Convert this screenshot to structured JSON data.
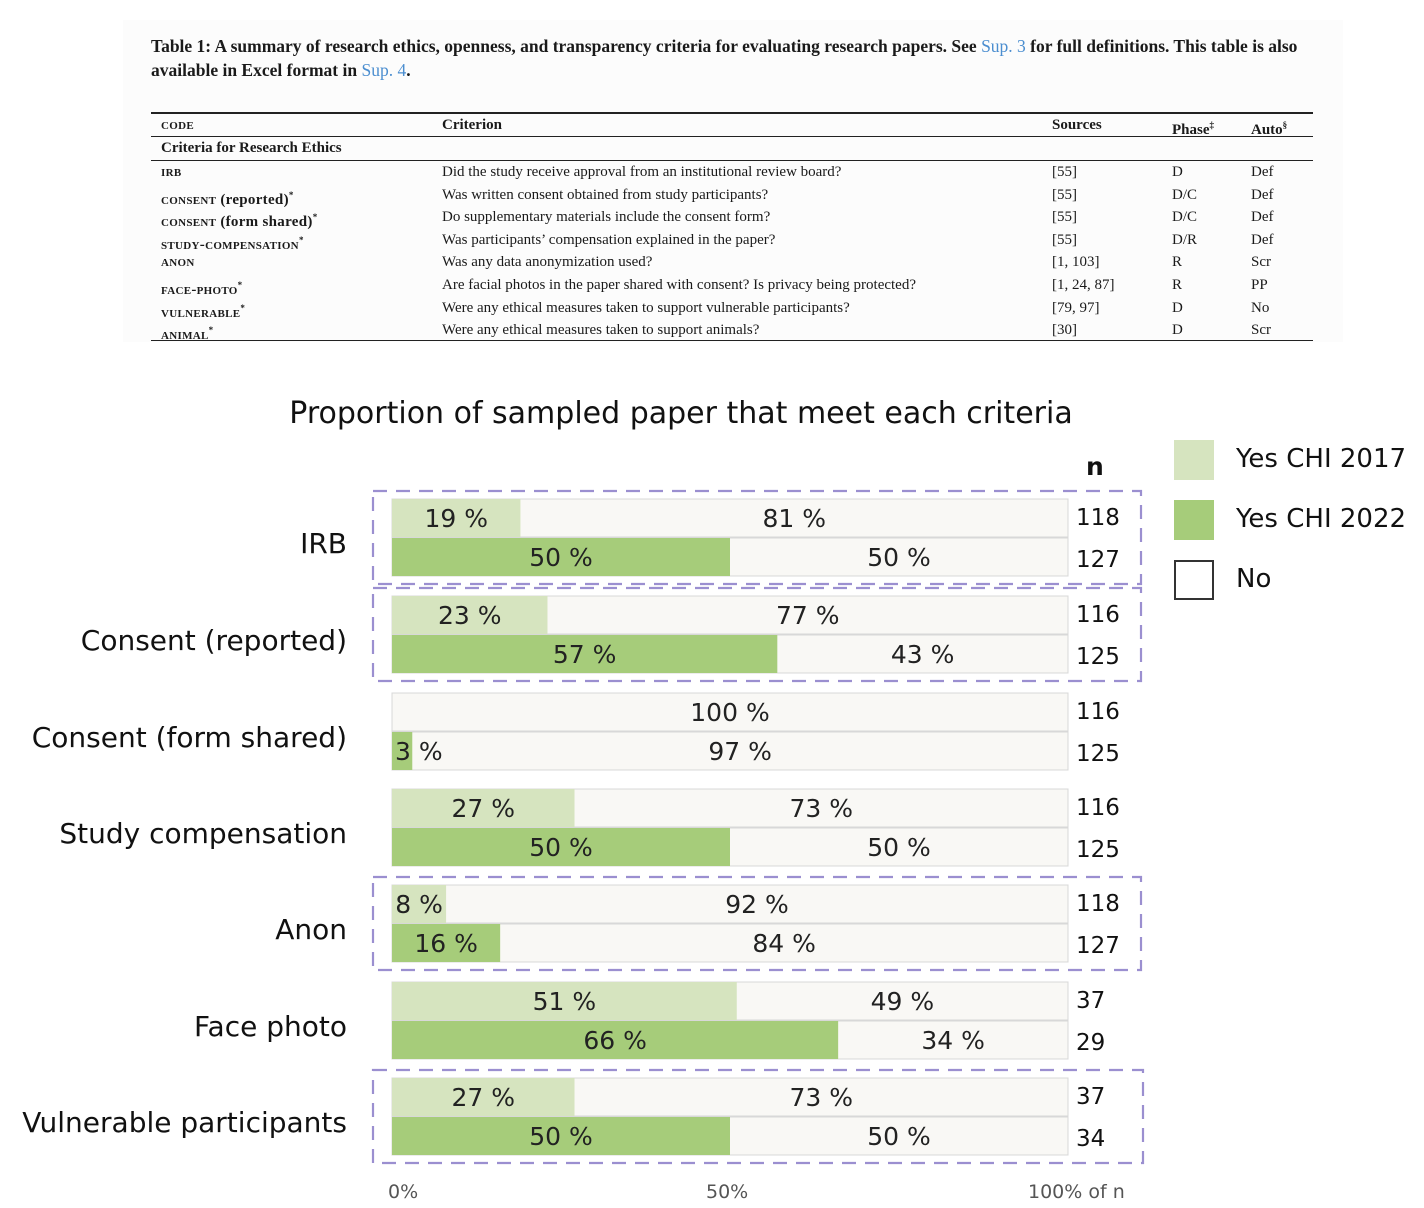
{
  "table": {
    "caption_parts": [
      "Table 1: A summary of research ethics, openness, and transparency criteria for evaluating research papers. See ",
      "Sup. 3",
      " for full definitions. This table is also available in Excel format in ",
      "Sup. 4",
      "."
    ],
    "headers": {
      "code": "code",
      "criterion": "Criterion",
      "sources": "Sources",
      "phase": "Phase",
      "phase_mark": "‡",
      "auto": "Auto",
      "auto_mark": "§"
    },
    "section": "Criteria for Research Ethics",
    "rows": [
      {
        "code": "irb",
        "suffix": "",
        "mark": "",
        "criterion": "Did the study receive approval from an institutional review board?",
        "sources": "[55]",
        "phase": "D",
        "auto": "Def"
      },
      {
        "code": "consent",
        "suffix": "(reported)",
        "mark": "*",
        "criterion": "Was written consent obtained from study participants?",
        "sources": "[55]",
        "phase": "D/C",
        "auto": "Def"
      },
      {
        "code": "consent",
        "suffix": "(form shared)",
        "mark": "*",
        "criterion": "Do supplementary materials include the consent form?",
        "sources": "[55]",
        "phase": "D/C",
        "auto": "Def"
      },
      {
        "code": "study-compensation",
        "suffix": "",
        "mark": "*",
        "criterion": "Was participants’ compensation explained in the paper?",
        "sources": "[55]",
        "phase": "D/R",
        "auto": "Def"
      },
      {
        "code": "anon",
        "suffix": "",
        "mark": "",
        "criterion": "Was any data anonymization used?",
        "sources": "[1, 103]",
        "phase": "R",
        "auto": "Scr"
      },
      {
        "code": "face-photo",
        "suffix": "",
        "mark": "*",
        "criterion": "Are facial photos in the paper shared with consent? Is privacy being protected?",
        "sources": "[1, 24, 87]",
        "phase": "R",
        "auto": "PP"
      },
      {
        "code": "vulnerable",
        "suffix": "",
        "mark": "*",
        "criterion": "Were any ethical measures taken to support vulnerable participants?",
        "sources": "[79, 97]",
        "phase": "D",
        "auto": "No"
      },
      {
        "code": "animal",
        "suffix": "",
        "mark": "*",
        "criterion": "Were any ethical measures taken to support animals?",
        "sources": "[30]",
        "phase": "D",
        "auto": "Scr"
      }
    ]
  },
  "chart_data": {
    "type": "bar",
    "orientation": "horizontal",
    "stacked_percent": true,
    "title": "Proportion of sampled paper that meet each criteria",
    "n_header": "n",
    "categories": [
      "IRB",
      "Consent (reported)",
      "Consent (form shared)",
      "Study compensation",
      "Anon",
      "Face photo",
      "Vulnerable participants"
    ],
    "series": [
      {
        "name": "Yes CHI 2017",
        "color": "#d6e4bf",
        "yes": [
          19,
          23,
          0,
          27,
          8,
          51,
          27
        ],
        "no": [
          81,
          77,
          100,
          73,
          92,
          49,
          73
        ],
        "n": [
          118,
          116,
          116,
          116,
          118,
          37,
          37
        ]
      },
      {
        "name": "Yes CHI 2022",
        "color": "#a6cc7a",
        "yes": [
          50,
          57,
          3,
          50,
          16,
          66,
          50
        ],
        "no": [
          50,
          43,
          97,
          50,
          84,
          34,
          50
        ],
        "n": [
          127,
          125,
          125,
          125,
          127,
          29,
          34
        ]
      }
    ],
    "highlighted": [
      "IRB",
      "Consent (reported)",
      "Anon",
      "Vulnerable participants"
    ],
    "highlight_color": "#9b8fd0",
    "no_color": "#f9f8f5",
    "x_ticks": [
      "0%",
      "50%",
      "100% of n"
    ],
    "xlim": [
      0,
      100
    ],
    "legend": {
      "position": "right",
      "items": [
        {
          "label": "Yes CHI 2017",
          "color": "#d6e4bf"
        },
        {
          "label": "Yes CHI 2022",
          "color": "#a6cc7a"
        },
        {
          "label": "No",
          "color": "#ffffff"
        }
      ]
    }
  }
}
